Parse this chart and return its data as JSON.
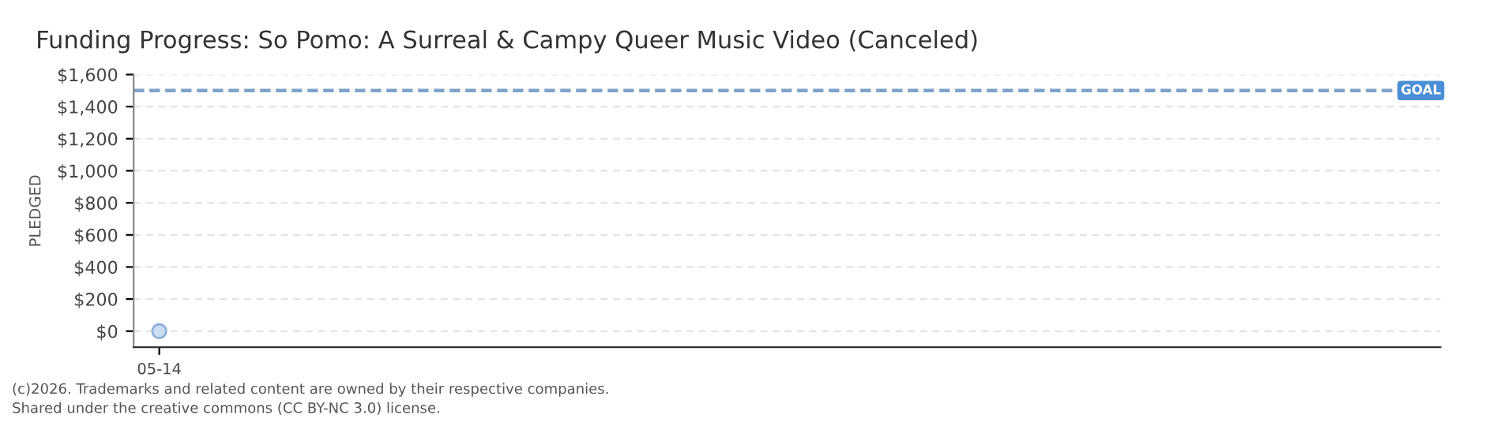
{
  "chart_data": {
    "type": "scatter",
    "title": "Funding Progress: So Pomo: A Surreal & Campy Queer Music Video (Canceled)",
    "ylabel": "PLEDGED",
    "categories": [
      "05-14"
    ],
    "series": [
      {
        "color": "#c9def2",
        "values": [
          0
        ]
      }
    ],
    "ylim": [
      -100,
      1600
    ],
    "yticks": [
      {
        "value": 0,
        "label": "$0"
      },
      {
        "value": 200,
        "label": "$200"
      },
      {
        "value": 400,
        "label": "$400"
      },
      {
        "value": 600,
        "label": "$600"
      },
      {
        "value": 800,
        "label": "$800"
      },
      {
        "value": 1000,
        "label": "$1,000"
      },
      {
        "value": 1200,
        "label": "$1,200"
      },
      {
        "value": 1400,
        "label": "$1,400"
      },
      {
        "value": 1600,
        "label": "$1,600"
      }
    ],
    "ref_lines": [
      {
        "axis": "y",
        "value": 1500,
        "label": "GOAL",
        "color": "#7fa3c8",
        "line_style": "dashed"
      }
    ],
    "grid": "y",
    "marker": "circle",
    "annotations": [
      "(c)2026. Trademarks and related content are owned by their respective companies.",
      "Shared under the creative commons (CC BY-NC 3.0) license."
    ]
  }
}
